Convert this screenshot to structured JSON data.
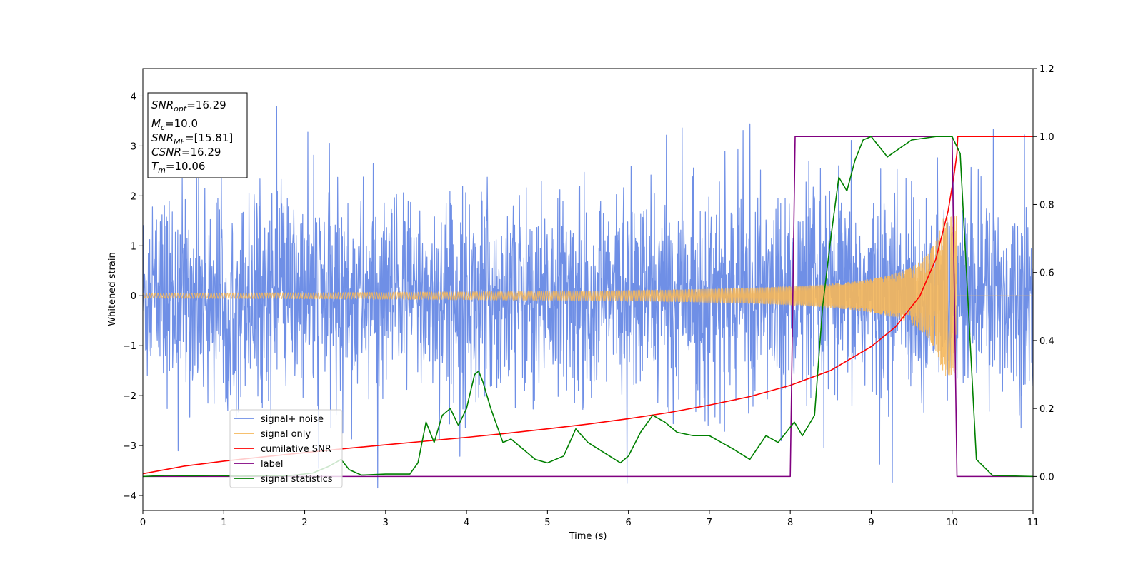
{
  "chart_data": {
    "type": "line",
    "title": "",
    "xlabel": "Time (s)",
    "ylabel": "Whitened strain",
    "ylabel_right": "",
    "xlim": [
      0,
      11
    ],
    "ylim": [
      -4.3,
      4.55
    ],
    "ylim_right": [
      -0.1,
      1.2
    ],
    "x_ticks": [
      0,
      1,
      2,
      3,
      4,
      5,
      6,
      7,
      8,
      9,
      10,
      11
    ],
    "y_ticks": [
      -4,
      -3,
      -2,
      -1,
      0,
      1,
      2,
      3,
      4
    ],
    "y_ticks_right": [
      0.0,
      0.2,
      0.4,
      0.6,
      0.8,
      1.0,
      1.2
    ],
    "grid": false,
    "legend_position": "lower-left",
    "info_box": {
      "position": "top-left",
      "lines": [
        {
          "sym": "SNR",
          "sub": "opt",
          "val": "=16.29"
        },
        {
          "sym": "M",
          "sub": "c",
          "val": "=10.0"
        },
        {
          "sym": "SNR",
          "sub": "MF",
          "val": "=[15.81]"
        },
        {
          "sym": "CSNR",
          "sub": "",
          "val": "=16.29"
        },
        {
          "sym": "T",
          "sub": "m",
          "val": "=10.06"
        }
      ]
    },
    "series": [
      {
        "name": "signal+ noise",
        "axis": "left",
        "color": "#6f8fe6",
        "kind": "noise",
        "amplitude_sigma": 1.0,
        "max_spike": 4.15,
        "min_spike": -3.85
      },
      {
        "name": "signal only",
        "axis": "left",
        "color": "#f5b75a",
        "kind": "chirp",
        "merger_time": 10.06,
        "amp_start": 0.05,
        "amp_peak": 1.6
      },
      {
        "name": "cumilative SNR",
        "axis": "right",
        "color": "#ff0000",
        "kind": "line",
        "x": [
          0.0,
          0.5,
          1.0,
          1.5,
          2.0,
          2.5,
          3.0,
          3.5,
          4.0,
          4.5,
          5.0,
          5.5,
          6.0,
          6.5,
          7.0,
          7.5,
          8.0,
          8.5,
          9.0,
          9.3,
          9.6,
          9.8,
          9.95,
          10.02,
          10.06,
          10.07,
          11.0
        ],
        "y": [
          0.008,
          0.03,
          0.045,
          0.058,
          0.07,
          0.082,
          0.093,
          0.104,
          0.115,
          0.127,
          0.14,
          0.154,
          0.17,
          0.188,
          0.21,
          0.235,
          0.268,
          0.312,
          0.382,
          0.44,
          0.53,
          0.64,
          0.78,
          0.88,
          0.95,
          1.0,
          1.0
        ]
      },
      {
        "name": "label",
        "axis": "right",
        "color": "#800080",
        "kind": "line",
        "x": [
          0.0,
          8.0,
          8.06,
          10.0,
          10.06,
          11.0
        ],
        "y": [
          0.0,
          0.0,
          1.0,
          1.0,
          0.0,
          0.0
        ]
      },
      {
        "name": "signal statistics",
        "axis": "right",
        "color": "#008000",
        "kind": "line",
        "x": [
          0.0,
          0.3,
          0.6,
          0.9,
          1.2,
          1.5,
          1.8,
          2.1,
          2.3,
          2.45,
          2.55,
          2.7,
          3.0,
          3.3,
          3.4,
          3.5,
          3.6,
          3.7,
          3.8,
          3.9,
          4.0,
          4.1,
          4.15,
          4.2,
          4.3,
          4.45,
          4.55,
          4.7,
          4.85,
          5.0,
          5.2,
          5.35,
          5.5,
          5.7,
          5.9,
          6.0,
          6.15,
          6.3,
          6.45,
          6.6,
          6.8,
          7.0,
          7.15,
          7.3,
          7.5,
          7.7,
          7.85,
          7.95,
          8.05,
          8.15,
          8.3,
          8.4,
          8.5,
          8.6,
          8.7,
          8.8,
          8.9,
          9.0,
          9.2,
          9.5,
          9.8,
          10.0,
          10.1,
          10.2,
          10.3,
          10.5,
          11.0
        ],
        "y": [
          0.0,
          0.003,
          0.002,
          0.003,
          0.001,
          0.002,
          0.002,
          0.01,
          0.03,
          0.05,
          0.02,
          0.004,
          0.007,
          0.007,
          0.04,
          0.16,
          0.1,
          0.18,
          0.2,
          0.15,
          0.2,
          0.3,
          0.31,
          0.28,
          0.2,
          0.1,
          0.11,
          0.08,
          0.05,
          0.04,
          0.06,
          0.14,
          0.1,
          0.07,
          0.04,
          0.06,
          0.13,
          0.18,
          0.16,
          0.13,
          0.12,
          0.12,
          0.1,
          0.08,
          0.05,
          0.12,
          0.1,
          0.13,
          0.16,
          0.12,
          0.18,
          0.5,
          0.7,
          0.88,
          0.84,
          0.93,
          0.99,
          1.0,
          0.94,
          0.99,
          1.0,
          1.0,
          0.95,
          0.5,
          0.05,
          0.003,
          0.0
        ]
      }
    ]
  }
}
